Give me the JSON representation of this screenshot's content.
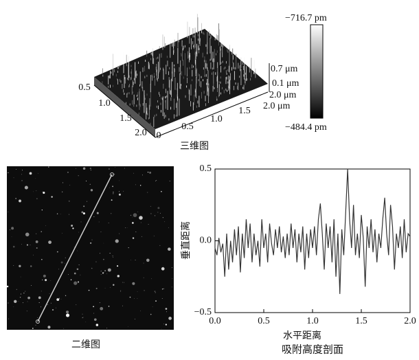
{
  "surface_3d": {
    "caption": "三维图",
    "y_axis_labels": [
      "0.5",
      "1.0",
      "1.5",
      "2.0"
    ],
    "x_axis_labels": [
      "0",
      "0.5",
      "1.0",
      "1.5",
      "2.0 μm"
    ],
    "z_axis_labels": [
      "0.7 μm",
      "0.1 μm",
      "2.0 μm"
    ],
    "colorbar_top": "−716.7 pm",
    "colorbar_bottom": "−484.4 pm"
  },
  "image_2d": {
    "caption": "二维图"
  },
  "chart_data": {
    "type": "line",
    "title": "吸附高度剖面",
    "x_label": "水平距离",
    "y_label": "垂直距离",
    "color": "#333333",
    "x": [
      0,
      0.02,
      0.04,
      0.06,
      0.08,
      0.1,
      0.12,
      0.14,
      0.16,
      0.18,
      0.2,
      0.22,
      0.24,
      0.26,
      0.28,
      0.3,
      0.32,
      0.34,
      0.36,
      0.38,
      0.4,
      0.42,
      0.44,
      0.46,
      0.48,
      0.5,
      0.52,
      0.54,
      0.56,
      0.58,
      0.6,
      0.62,
      0.64,
      0.66,
      0.68,
      0.7,
      0.72,
      0.74,
      0.76,
      0.78,
      0.8,
      0.82,
      0.84,
      0.86,
      0.88,
      0.9,
      0.92,
      0.94,
      0.96,
      0.98,
      1,
      1.02,
      1.04,
      1.06,
      1.08,
      1.1,
      1.12,
      1.14,
      1.16,
      1.18,
      1.2,
      1.22,
      1.24,
      1.26,
      1.28,
      1.3,
      1.32,
      1.34,
      1.36,
      1.38,
      1.4,
      1.42,
      1.44,
      1.46,
      1.48,
      1.5,
      1.52,
      1.54,
      1.56,
      1.58,
      1.6,
      1.62,
      1.64,
      1.66,
      1.68,
      1.7,
      1.72,
      1.74,
      1.76,
      1.78,
      1.8,
      1.82,
      1.84,
      1.86,
      1.88,
      1.9,
      1.92,
      1.94,
      1.96,
      1.98,
      2
    ],
    "values": [
      -0.05,
      -0.1,
      0.02,
      -0.08,
      -0.02,
      -0.25,
      0.05,
      -0.2,
      0,
      -0.15,
      0.08,
      -0.1,
      0.1,
      -0.22,
      0.05,
      -0.12,
      0.15,
      -0.05,
      0.12,
      -0.15,
      0.05,
      -0.1,
      0,
      -0.18,
      0.15,
      -0.05,
      0.05,
      -0.15,
      0.12,
      -0.02,
      -0.1,
      0.08,
      -0.05,
      0.1,
      -0.08,
      0.03,
      -0.12,
      0.05,
      -0.1,
      0.12,
      -0.05,
      0.08,
      -0.15,
      0.05,
      -0.08,
      0.1,
      -0.2,
      0.05,
      -0.12,
      0.08,
      -0.05,
      0.1,
      -0.1,
      0.15,
      0.26,
      0.05,
      -0.2,
      0.12,
      -0.05,
      0.1,
      -0.15,
      0.15,
      -0.25,
      0.05,
      -0.37,
      0.08,
      -0.1,
      0.2,
      0.5,
      0.15,
      -0.05,
      0.25,
      -0.1,
      0.05,
      -0.12,
      0.18,
      0.02,
      -0.32,
      0.1,
      -0.05,
      0.15,
      -0.08,
      0.08,
      -0.15,
      0.05,
      -0.05,
      0.15,
      0.3,
      0.05,
      -0.1,
      0.25,
      0.1,
      -0.2,
      0.05,
      -0.05,
      0.1,
      -0.12,
      0.15,
      -0.08,
      0.05,
      0.03
    ],
    "xlim": [
      0,
      2
    ],
    "ylim": [
      -0.5,
      0.5
    ],
    "xticks": [
      {
        "value": 0,
        "label": "0.0"
      },
      0.5,
      {
        "value": 1,
        "label": "1.0"
      },
      1.5,
      {
        "value": 2,
        "label": "2.0"
      }
    ],
    "yticks": [
      {
        "value": -0.5,
        "label": "−0.5"
      },
      {
        "value": 0,
        "label": "0.0"
      },
      0.5
    ]
  }
}
